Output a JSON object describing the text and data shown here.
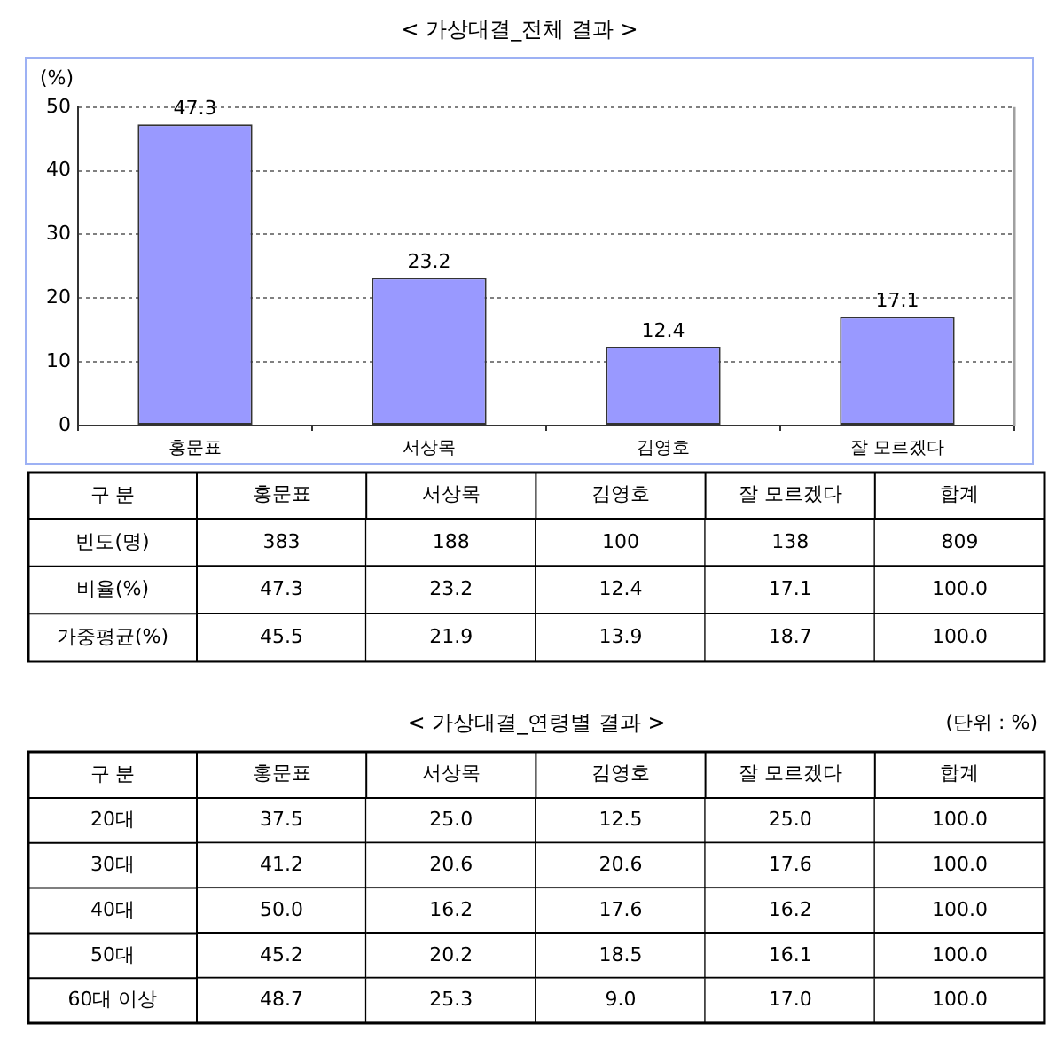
{
  "chart_data": [
    {
      "type": "bar",
      "title": "< 가상대결_전체 결과 >",
      "ylabel": "(%)",
      "categories": [
        "홍문표",
        "서상목",
        "김영호",
        "잘 모르겠다"
      ],
      "values": [
        47.3,
        23.2,
        12.4,
        17.1
      ],
      "value_labels": [
        "47.3",
        "23.2",
        "12.4",
        "17.1"
      ],
      "color": "#9999ff",
      "ylim": [
        0,
        50
      ],
      "yticks": [
        0,
        10,
        20,
        30,
        40,
        50
      ],
      "grid": "y"
    },
    {
      "type": "heatmap",
      "ylabel": "구 분",
      "categories": [
        "홍문표",
        "서상목",
        "김영호",
        "잘 모르겠다",
        "합계"
      ],
      "y_categories": [
        "빈도(명)",
        "비율(%)",
        "가중평균(%)"
      ],
      "cells": [
        [
          383,
          188,
          100,
          138,
          809
        ],
        [
          47.3,
          23.2,
          12.4,
          17.1,
          100
        ],
        [
          45.5,
          21.9,
          13.9,
          18.7,
          100
        ]
      ],
      "cell_labels": [
        [
          "383",
          "188",
          "100",
          "138",
          "809"
        ],
        [
          "47.3",
          "23.2",
          "12.4",
          "17.1",
          "100.0"
        ],
        [
          "45.5",
          "21.9",
          "13.9",
          "18.7",
          "100.0"
        ]
      ],
      "color": "#ffffff"
    },
    {
      "type": "heatmap",
      "title": "< 가상대결_연령별 결과 >",
      "annotations": [
        "(단위 : %)"
      ],
      "ylabel": "구 분",
      "categories": [
        "홍문표",
        "서상목",
        "김영호",
        "잘 모르겠다",
        "합계"
      ],
      "y_categories": [
        "20대",
        "30대",
        "40대",
        "50대",
        "60대 이상"
      ],
      "cells": [
        [
          37.5,
          25,
          12.5,
          25,
          100
        ],
        [
          41.2,
          20.6,
          20.6,
          17.6,
          100
        ],
        [
          50,
          16.2,
          17.6,
          16.2,
          100
        ],
        [
          45.2,
          20.2,
          18.5,
          16.1,
          100
        ],
        [
          48.7,
          25.3,
          9,
          17,
          100
        ]
      ],
      "cell_labels": [
        [
          "37.5",
          "25.0",
          "12.5",
          "25.0",
          "100.0"
        ],
        [
          "41.2",
          "20.6",
          "20.6",
          "17.6",
          "100.0"
        ],
        [
          "50.0",
          "16.2",
          "17.6",
          "16.2",
          "100.0"
        ],
        [
          "45.2",
          "20.2",
          "18.5",
          "16.1",
          "100.0"
        ],
        [
          "48.7",
          "25.3",
          "9.0",
          "17.0",
          "100.0"
        ]
      ],
      "color": "#ffffff"
    }
  ]
}
